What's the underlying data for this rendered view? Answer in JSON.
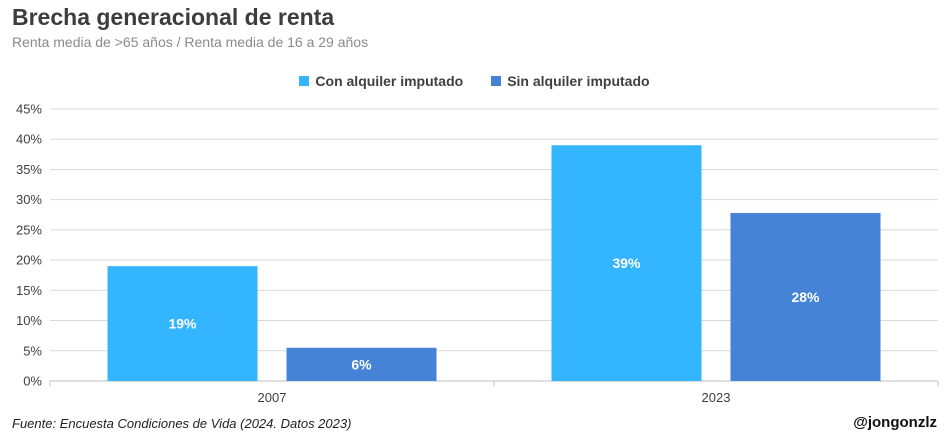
{
  "chart_data": {
    "type": "bar",
    "title": "Brecha generacional de renta",
    "subtitle": "Renta media de >65 años / Renta media de 16 a 29 años",
    "categories": [
      "2007",
      "2023"
    ],
    "series": [
      {
        "name": "Con alquiler imputado",
        "values": [
          19,
          39
        ],
        "labels": [
          "19%",
          "39%"
        ],
        "color": "#33b5ff"
      },
      {
        "name": "Sin alquiler imputado",
        "values": [
          5.5,
          27.8
        ],
        "labels": [
          "6%",
          "28%"
        ],
        "color": "#4583d6"
      }
    ],
    "yticks": [
      "0%",
      "5%",
      "10%",
      "15%",
      "20%",
      "25%",
      "30%",
      "35%",
      "40%",
      "45%"
    ],
    "ylim": [
      0,
      45
    ],
    "xlabel": "",
    "ylabel": "",
    "grid": true,
    "legend": "top-center"
  },
  "footer": {
    "source": "Fuente: Encuesta Condiciones de Vida (2024. Datos 2023)",
    "handle": "@jongonzlz"
  }
}
